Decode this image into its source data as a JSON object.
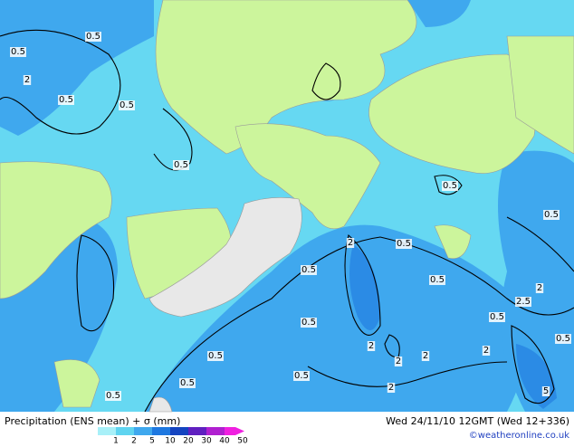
{
  "map": {
    "contour_labels": [
      "0.5",
      "0.5",
      "2",
      "0.5",
      "0.5",
      "0.5",
      "0.5",
      "0.5",
      "2",
      "0.5",
      "0.5",
      "0.5",
      "2",
      "2.5",
      "0.5",
      "0.5",
      "0.5",
      "2",
      "0.5",
      "2",
      "2",
      "2",
      "0.5",
      "0.5",
      "2",
      "5",
      "0.5"
    ]
  },
  "footer": {
    "title": "Precipitation (ENS mean) + σ (mm)",
    "timestamp": "Wed 24/11/10 12GMT (Wed 12+336)",
    "credit": "©weatheronline.co.uk",
    "legend": [
      {
        "label": "1",
        "color": "#a8f0f8"
      },
      {
        "label": "2",
        "color": "#5fd4f0"
      },
      {
        "label": "5",
        "color": "#3fa8ee"
      },
      {
        "label": "10",
        "color": "#1e78e0"
      },
      {
        "label": "20",
        "color": "#1444c0"
      },
      {
        "label": "30",
        "color": "#6020c0"
      },
      {
        "label": "40",
        "color": "#b020d0"
      },
      {
        "label": "50",
        "color": "#f020e0"
      }
    ]
  }
}
